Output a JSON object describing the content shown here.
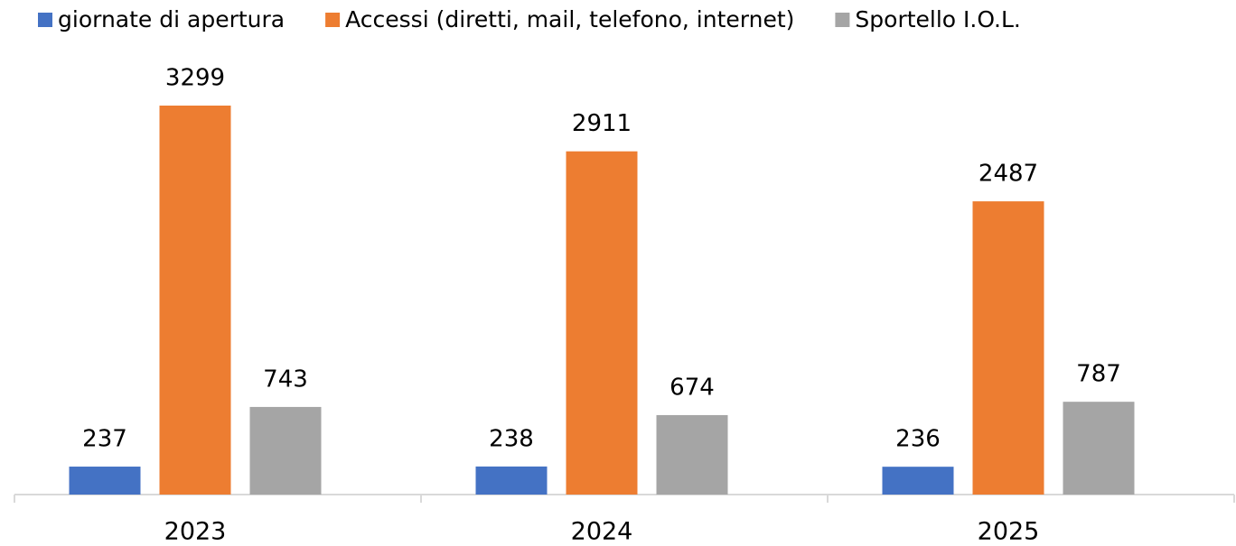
{
  "chart_data": {
    "type": "bar",
    "categories": [
      "2023",
      "2024",
      "2025"
    ],
    "series": [
      {
        "name": "giornate di apertura",
        "color": "#4472c4",
        "values": [
          237,
          238,
          236
        ]
      },
      {
        "name": "Accessi (diretti, mail, telefono, internet)",
        "color": "#ed7d31",
        "values": [
          3299,
          2911,
          2487
        ]
      },
      {
        "name": "Sportello I.O.L.",
        "color": "#a5a5a5",
        "values": [
          743,
          674,
          787
        ]
      }
    ],
    "legend": "top"
  }
}
